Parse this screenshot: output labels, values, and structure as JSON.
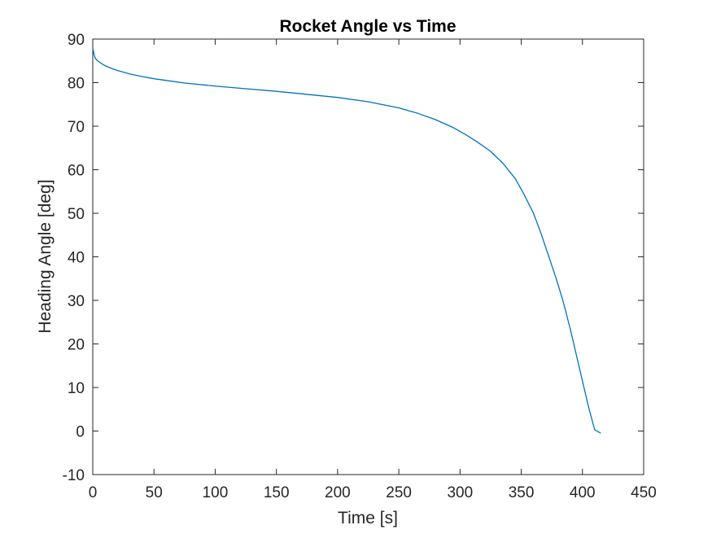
{
  "chart_data": {
    "type": "line",
    "title": "Rocket Angle vs Time",
    "xlabel": "Time [s]",
    "ylabel": "Heading Angle [deg]",
    "xlim": [
      0,
      450
    ],
    "ylim": [
      -10,
      90
    ],
    "xticks": [
      0,
      50,
      100,
      150,
      200,
      250,
      300,
      350,
      400,
      450
    ],
    "yticks": [
      -10,
      0,
      10,
      20,
      30,
      40,
      50,
      60,
      70,
      80,
      90
    ],
    "grid": false,
    "box": true,
    "colors": {
      "line": "#0072BD",
      "axes": "#262626",
      "background": "#ffffff"
    },
    "series": [
      {
        "x": [
          0,
          1,
          2,
          4,
          7,
          10,
          15,
          20,
          30,
          40,
          50,
          60,
          75,
          100,
          125,
          150,
          175,
          200,
          225,
          250,
          265,
          280,
          295,
          305,
          315,
          325,
          335,
          345,
          352,
          360,
          366,
          372,
          378,
          384,
          390,
          395,
          400,
          405,
          410,
          415
        ],
        "y": [
          88,
          86.5,
          85.6,
          85.0,
          84.4,
          83.9,
          83.3,
          82.8,
          82.0,
          81.4,
          80.9,
          80.5,
          79.9,
          79.2,
          78.6,
          78.0,
          77.3,
          76.6,
          75.6,
          74.2,
          73.0,
          71.5,
          69.6,
          68.0,
          66.2,
          64.2,
          61.5,
          58.0,
          54.5,
          50.0,
          45.5,
          40.5,
          35.5,
          30.0,
          23.5,
          17.5,
          11.5,
          5.5,
          0.3,
          -0.5
        ]
      }
    ]
  }
}
